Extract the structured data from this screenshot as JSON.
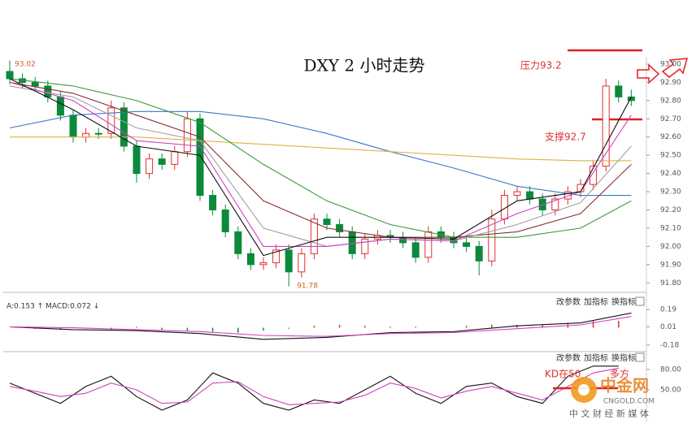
{
  "chart_data": [
    {
      "type": "candlestick",
      "title": "DXY 2 小时走势",
      "annotations": [
        "压力93.2",
        "支撑92.7"
      ],
      "up_color": "#e03030",
      "down_color": "#0a8a3a",
      "ylim": [
        91.77,
        93.04
      ],
      "yticks": [
        {
          "value": 91.8,
          "label": "91.80"
        },
        {
          "value": 91.9,
          "label": "91.90"
        },
        {
          "value": 92,
          "label": "92.00"
        },
        {
          "value": 92.1,
          "label": "92.10"
        },
        {
          "value": 92.2,
          "label": "92.20"
        },
        {
          "value": 92.3,
          "label": "92.30"
        },
        {
          "value": 92.4,
          "label": "92.40"
        },
        {
          "value": 92.5,
          "label": "92.50"
        },
        {
          "value": 92.6,
          "label": "92.60"
        },
        {
          "value": 92.7,
          "label": "92.70"
        },
        {
          "value": 92.8,
          "label": "92.80"
        },
        {
          "value": 92.9,
          "label": "92.90"
        },
        {
          "value": 93,
          "label": "93.00"
        }
      ],
      "open": [
        92.96,
        92.92,
        92.9,
        92.88,
        92.82,
        92.72,
        92.6,
        92.62,
        92.62,
        92.76,
        92.55,
        92.4,
        92.48,
        92.45,
        92.52,
        92.7,
        92.28,
        92.2,
        92.08,
        91.96,
        91.9,
        91.91,
        91.98,
        91.86,
        91.96,
        92.15,
        92.12,
        92.08,
        91.96,
        92.04,
        92.06,
        92.05,
        92.02,
        91.94,
        92.08,
        92.05,
        92.02,
        92.0,
        91.92,
        92.15,
        92.28,
        92.3,
        92.26,
        92.2,
        92.26,
        92.3,
        92.34,
        92.44,
        92.88,
        92.82
      ],
      "high": [
        93.02,
        92.95,
        92.93,
        92.91,
        92.85,
        92.75,
        92.65,
        92.65,
        92.8,
        92.79,
        92.58,
        92.51,
        92.51,
        92.55,
        92.74,
        92.73,
        92.31,
        92.23,
        92.11,
        91.99,
        91.94,
        92.01,
        92.01,
        91.99,
        92.18,
        92.18,
        92.15,
        92.11,
        92.07,
        92.09,
        92.09,
        92.08,
        92.05,
        92.11,
        92.11,
        92.08,
        92.05,
        92.03,
        92.2,
        92.31,
        92.33,
        92.33,
        92.29,
        92.29,
        92.33,
        92.37,
        92.47,
        92.92,
        92.91,
        92.86
      ],
      "low": [
        92.89,
        92.87,
        92.85,
        92.79,
        92.69,
        92.57,
        92.57,
        92.59,
        92.59,
        92.52,
        92.35,
        92.37,
        92.42,
        92.42,
        92.49,
        92.25,
        92.17,
        92.05,
        91.93,
        91.87,
        91.87,
        91.88,
        91.78,
        91.83,
        91.93,
        92.09,
        92.05,
        91.93,
        91.93,
        92.01,
        92.02,
        91.99,
        91.91,
        91.91,
        92.02,
        91.99,
        91.97,
        91.84,
        91.89,
        92.12,
        92.25,
        92.23,
        92.17,
        92.17,
        92.23,
        92.27,
        92.31,
        92.41,
        92.79,
        92.77
      ],
      "close": [
        92.92,
        92.9,
        92.88,
        92.82,
        92.72,
        92.6,
        92.62,
        92.62,
        92.76,
        92.55,
        92.4,
        92.48,
        92.45,
        92.52,
        92.7,
        92.28,
        92.2,
        92.08,
        91.96,
        91.9,
        91.91,
        91.98,
        91.86,
        91.96,
        92.15,
        92.12,
        92.08,
        91.96,
        92.04,
        92.06,
        92.05,
        92.02,
        91.94,
        92.08,
        92.05,
        92.02,
        92.0,
        91.92,
        92.15,
        92.28,
        92.3,
        92.26,
        92.2,
        92.26,
        92.3,
        92.34,
        92.44,
        92.88,
        92.82,
        92.8
      ],
      "line_x": [
        0,
        5,
        10,
        15,
        20,
        25,
        30,
        35,
        40,
        45,
        49
      ],
      "series": [
        {
          "color": "#3a78c8",
          "values": [
            92.65,
            92.72,
            92.74,
            92.74,
            92.7,
            92.62,
            92.52,
            92.43,
            92.33,
            92.28,
            92.28
          ]
        },
        {
          "color": "#e0b040",
          "values": [
            92.6,
            92.6,
            92.6,
            92.58,
            92.56,
            92.54,
            92.52,
            92.5,
            92.48,
            92.47,
            92.47
          ]
        },
        {
          "color": "#3a9a3a",
          "values": [
            92.92,
            92.88,
            92.8,
            92.68,
            92.45,
            92.25,
            92.12,
            92.05,
            92.05,
            92.1,
            92.25
          ]
        },
        {
          "color": "#8a3030",
          "values": [
            92.9,
            92.84,
            92.72,
            92.6,
            92.25,
            92.1,
            92.05,
            92.05,
            92.08,
            92.18,
            92.45
          ]
        },
        {
          "color": "#a0a0a0",
          "values": [
            92.88,
            92.82,
            92.65,
            92.58,
            92.1,
            92.0,
            92.04,
            92.03,
            92.12,
            92.24,
            92.55
          ]
        },
        {
          "color": "#d040c0",
          "values": [
            92.9,
            92.8,
            92.58,
            92.55,
            92.0,
            92.0,
            92.04,
            92.03,
            92.18,
            92.3,
            92.72
          ]
        },
        {
          "color": "#111111",
          "values": [
            92.92,
            92.75,
            92.55,
            92.5,
            91.95,
            92.05,
            92.05,
            92.04,
            92.25,
            92.3,
            92.82
          ]
        }
      ]
    },
    {
      "type": "macd",
      "header": "A:0.153 ↑ MACD:0.072 ↓",
      "buttons": [
        "改参数",
        "加指标",
        "换指标"
      ],
      "ylim": [
        -0.24,
        0.3
      ],
      "yticks": [
        0.19,
        0.01,
        -0.18
      ],
      "line_x": [
        0,
        5,
        10,
        15,
        20,
        25,
        30,
        35,
        40,
        45,
        49
      ],
      "series": [
        {
          "color": "#111111",
          "values": [
            0.01,
            -0.02,
            -0.03,
            -0.06,
            -0.12,
            -0.1,
            -0.05,
            -0.04,
            0.02,
            0.05,
            0.153
          ]
        },
        {
          "color": "#d040c0",
          "values": [
            0.01,
            0.0,
            -0.02,
            -0.04,
            -0.08,
            -0.09,
            -0.06,
            -0.05,
            -0.01,
            0.03,
            0.117
          ]
        }
      ],
      "bar_x": [
        0,
        2,
        4,
        6,
        8,
        10,
        12,
        14,
        16,
        18,
        20,
        22,
        24,
        26,
        28,
        30,
        32,
        34,
        36,
        38,
        40,
        42,
        44,
        46,
        48
      ],
      "bars": [
        0.0,
        -0.01,
        -0.02,
        -0.01,
        -0.02,
        0.01,
        -0.02,
        -0.03,
        -0.04,
        -0.05,
        -0.03,
        -0.01,
        0.02,
        0.03,
        0.02,
        0.01,
        0.01,
        0.0,
        0.02,
        0.03,
        0.03,
        0.03,
        0.05,
        0.07,
        0.072
      ],
      "up_color": "#e03030",
      "down_color": "#0a8a3a"
    },
    {
      "type": "kd",
      "buttons": [
        "改参数",
        "加指标",
        "换指标"
      ],
      "annotations": [
        "KD在50",
        "多方"
      ],
      "ylim": [
        8,
        98
      ],
      "yticks": [
        {
          "value": 80,
          "label": "80.00"
        },
        {
          "value": 50,
          "label": "50.00"
        }
      ],
      "line_x": [
        0,
        2,
        4,
        6,
        8,
        10,
        12,
        14,
        16,
        18,
        20,
        22,
        24,
        26,
        28,
        30,
        32,
        34,
        36,
        38,
        40,
        42,
        44,
        46,
        48
      ],
      "series": [
        {
          "color": "#111111",
          "values": [
            60,
            45,
            30,
            55,
            70,
            40,
            20,
            35,
            75,
            60,
            30,
            20,
            35,
            30,
            50,
            70,
            45,
            30,
            55,
            60,
            40,
            30,
            70,
            85,
            85
          ]
        },
        {
          "color": "#d040c0",
          "values": [
            55,
            48,
            40,
            45,
            60,
            50,
            30,
            32,
            60,
            62,
            40,
            28,
            30,
            32,
            42,
            60,
            52,
            38,
            48,
            55,
            45,
            35,
            55,
            75,
            82
          ]
        }
      ]
    }
  ],
  "watermark": {
    "brand": "中金网",
    "site": "CNGOLD.COM",
    "slogan": "中 文 财 经 新 媒 体"
  }
}
